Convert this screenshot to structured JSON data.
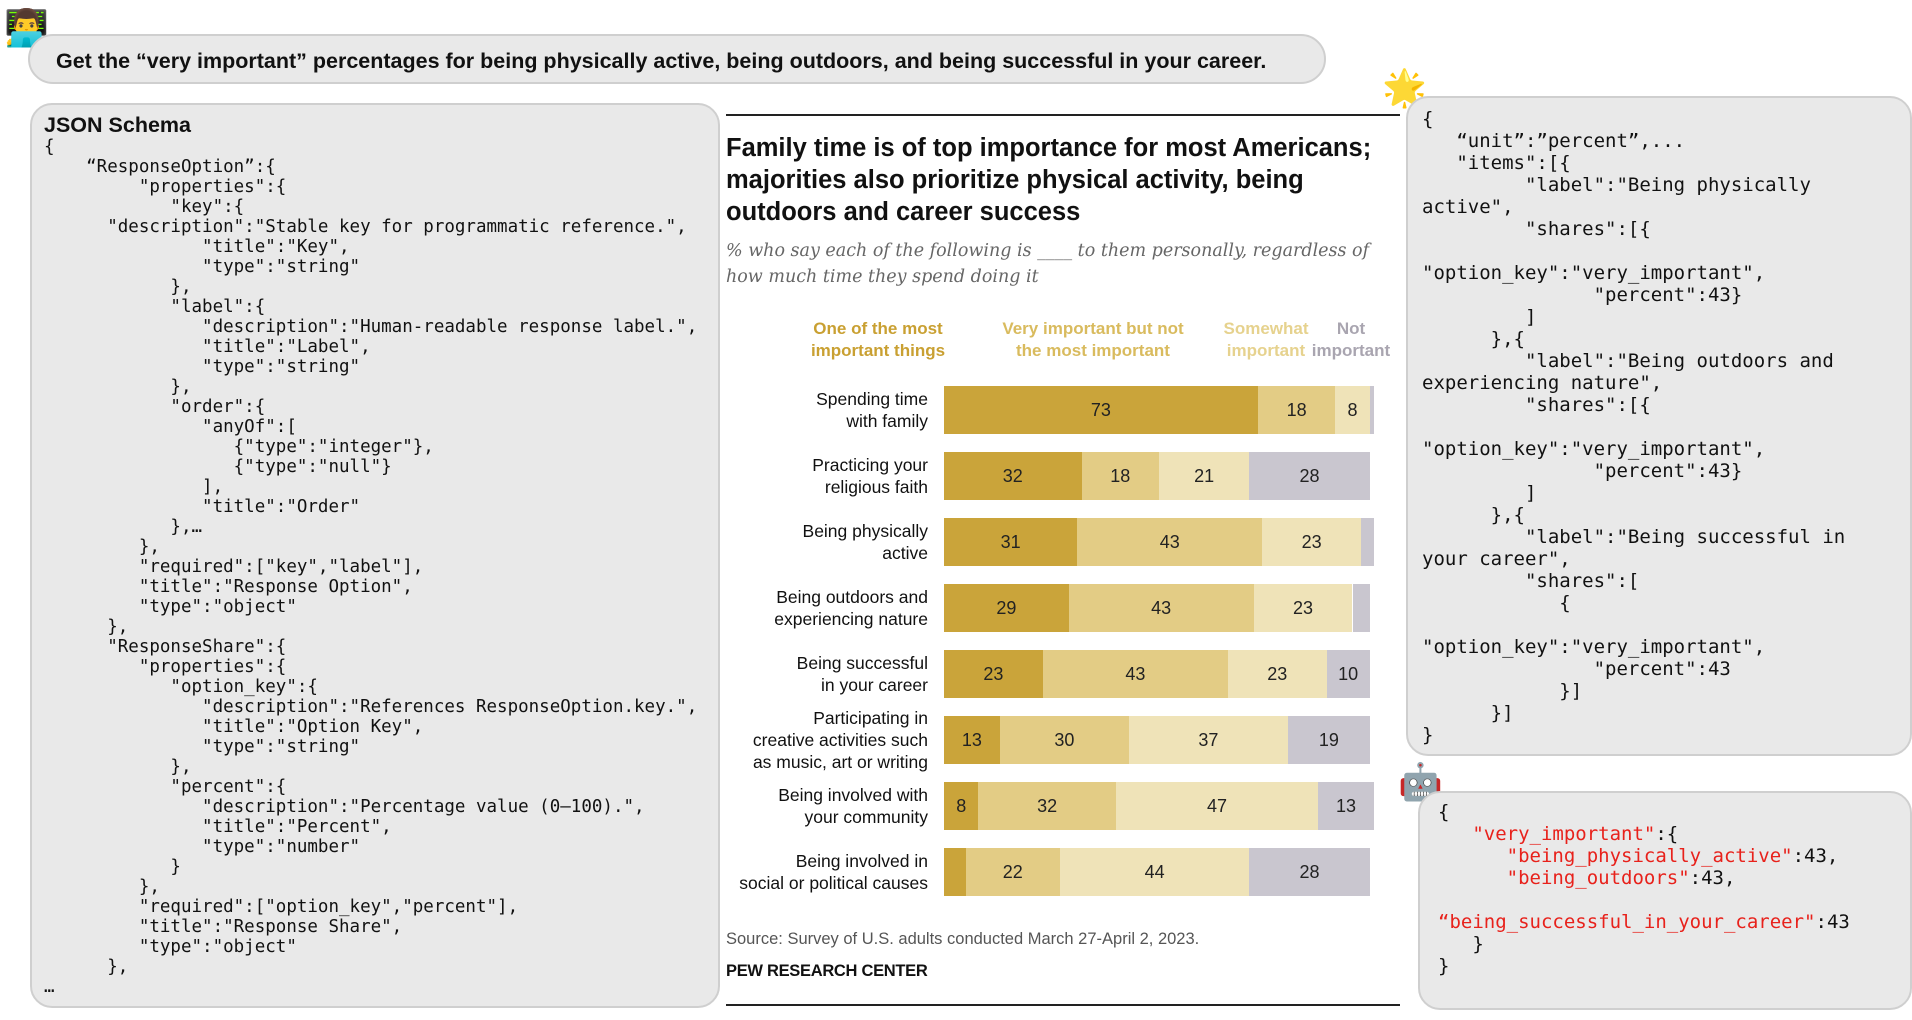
{
  "user_avatar": "👨‍💻",
  "question": "Get the “very important” percentages for being physically active, being outdoors, and being successful in your career.",
  "schema": {
    "title": "JSON Schema",
    "code": "{\n    “ResponseOption”:{\n         \"properties\":{\n            \"key\":{\n      \"description\":\"Stable key for programmatic reference.\",\n               \"title\":\"Key\",\n               \"type\":\"string\"\n            },\n            \"label\":{\n               \"description\":\"Human-readable response label.\",\n               \"title\":\"Label\",\n               \"type\":\"string\"\n            },\n            \"order\":{\n               \"anyOf\":[\n                  {\"type\":\"integer\"},\n                  {\"type\":\"null\"}\n               ],\n               \"title\":\"Order\"\n            },…\n         },\n         \"required\":[\"key\",\"label\"],\n         \"title\":\"Response Option\",\n         \"type\":\"object\"\n      },\n      \"ResponseShare\":{\n         \"properties\":{\n            \"option_key\":{\n               \"description\":\"References ResponseOption.key.\",\n               \"title\":\"Option Key\",\n               \"type\":\"string\"\n            },\n            \"percent\":{\n               \"description\":\"Percentage value (0–100).\",\n               \"title\":\"Percent\",\n               \"type\":\"number\"\n            }\n         },\n         \"required\":[\"option_key\",\"percent\"],\n         \"title\":\"Response Share\",\n         \"type\":\"object\"\n      },\n…"
  },
  "answer_icon": "🌟",
  "answer_code": "{\n   “unit”:”percent”,...\n   \"items\":[{\n         \"label\":\"Being physically\nactive\",\n         \"shares\":[{\n\n\"option_key\":\"very_important\",\n               \"percent\":43}\n         ]\n      },{\n         \"label\":\"Being outdoors and\nexperiencing nature\",\n         \"shares\":[{\n\n\"option_key\":\"very_important\",\n               \"percent\":43}\n         ]\n      },{\n         \"label\":\"Being successful in\nyour career\",\n         \"shares\":[\n            {\n\n\"option_key\":\"very_important\",\n               \"percent\":43\n            }]\n      }]\n}",
  "robot_icon": "🤖",
  "output": {
    "open": "{",
    "key_line": "   \"very_important\":{",
    "items": [
      {
        "key": "      \"being_physically_active\"",
        "val": ":43,"
      },
      {
        "key": "      \"being_outdoors\"",
        "val": ":43,"
      },
      {
        "key": "“being_successful_in_your_career\"",
        "val": ":43"
      }
    ],
    "close1": "   }",
    "close2": "}"
  },
  "chart_data": {
    "type": "bar",
    "orientation": "horizontal",
    "stacked": true,
    "title": "Family time is of top importance for most Americans; majorities also prioritize physical activity, being outdoors and career success",
    "subtitle": "% who say each of the following is ____ to them personally, regardless of how much time they spend doing it",
    "categories": [
      "Spending time with family",
      "Practicing your religious faith",
      "Being physically active",
      "Being outdoors and experiencing nature",
      "Being successful in your career",
      "Participating in creative activities such as music, art or writing",
      "Being involved with your community",
      "Being involved in social or political causes"
    ],
    "category_lines": [
      [
        "Spending time",
        "with family"
      ],
      [
        "Practicing your",
        "religious faith"
      ],
      [
        "Being physically",
        "active"
      ],
      [
        "Being outdoors and",
        "experiencing nature"
      ],
      [
        "Being successful",
        "in your career"
      ],
      [
        "Participating in",
        "creative activities such",
        "as music, art or writing"
      ],
      [
        "Being involved with",
        "your community"
      ],
      [
        "Being involved in",
        "social or political causes"
      ]
    ],
    "series": [
      {
        "name": "One of the most important things",
        "legend_lines": [
          "One of the most",
          "important things"
        ],
        "color": "#caa43a",
        "values": [
          73,
          32,
          31,
          29,
          23,
          13,
          8,
          5
        ]
      },
      {
        "name": "Very important but not the most important",
        "legend_lines": [
          "Very important but not",
          "the most important"
        ],
        "color": "#e3cc85",
        "values": [
          18,
          18,
          43,
          43,
          43,
          30,
          32,
          22
        ]
      },
      {
        "name": "Somewhat important",
        "legend_lines": [
          "Somewhat",
          "important"
        ],
        "color": "#efe3b8",
        "values": [
          8,
          21,
          23,
          23,
          23,
          37,
          47,
          44
        ]
      },
      {
        "name": "Not important",
        "legend_lines": [
          "Not",
          "important"
        ],
        "color": "#c9c6cf",
        "values": [
          1,
          28,
          3,
          4,
          10,
          19,
          13,
          28
        ]
      }
    ],
    "data_labels": [
      [
        "73",
        "18",
        "8",
        ""
      ],
      [
        "32",
        "18",
        "21",
        "28"
      ],
      [
        "31",
        "43",
        "23",
        ""
      ],
      [
        "29",
        "43",
        "23",
        ""
      ],
      [
        "23",
        "43",
        "23",
        "10"
      ],
      [
        "13",
        "30",
        "37",
        "19"
      ],
      [
        "8",
        "32",
        "47",
        "13"
      ],
      [
        "",
        "22",
        "44",
        "28"
      ]
    ],
    "legend_text_colors": [
      "#c9a032",
      "#d9bb5e",
      "#e6d28e",
      "#a9a5b0"
    ],
    "xlim": [
      0,
      100
    ],
    "source": "Source: Survey of U.S. adults conducted March 27-April 2, 2023.",
    "brand": "PEW RESEARCH CENTER"
  }
}
